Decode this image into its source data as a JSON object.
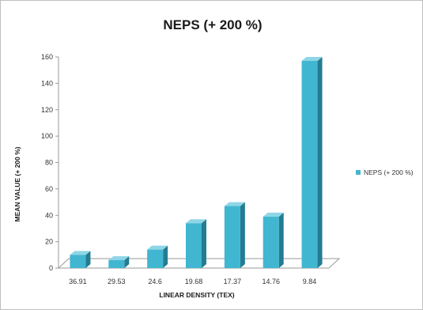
{
  "chart_data": {
    "type": "bar",
    "title": "NEPS (+ 200 %)",
    "xlabel": "LINEAR DENSITY (TEX)",
    "ylabel": "MEAN VALUE (+ 200 %)",
    "categories": [
      "36.91",
      "29.53",
      "24.6",
      "19.68",
      "17.37",
      "14.76",
      "9.84"
    ],
    "series": [
      {
        "name": "NEPS (+ 200 %)",
        "values": [
          10,
          6,
          14,
          34,
          47,
          39,
          157
        ]
      }
    ],
    "ylim": [
      0,
      160
    ],
    "yticks": [
      "0",
      "20",
      "40",
      "60",
      "80",
      "100",
      "120",
      "140",
      "160"
    ],
    "grid": false,
    "legend_position": "right",
    "colors": {
      "bar_front": "#41b6d1",
      "bar_side": "#237c92",
      "bar_top": "#8ed6e7",
      "floor": "#ffffff",
      "axis": "#9a9a9a"
    }
  }
}
